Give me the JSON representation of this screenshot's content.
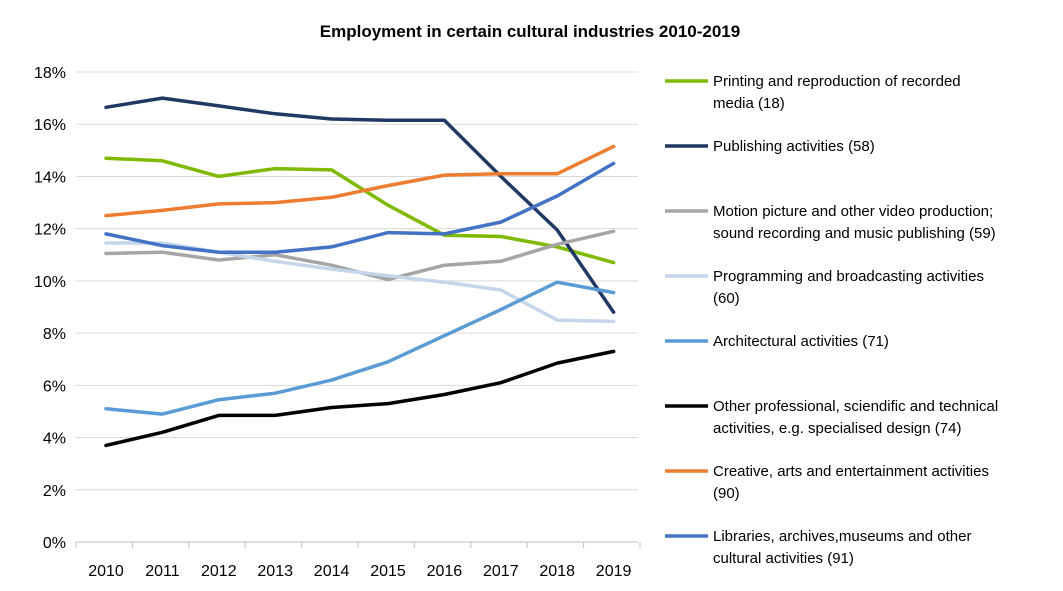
{
  "chart_data": {
    "type": "line",
    "title": "Employment in certain cultural industries 2010-2019",
    "xlabel": "",
    "ylabel": "",
    "x": [
      "2010",
      "2011",
      "2012",
      "2013",
      "2014",
      "2015",
      "2016",
      "2017",
      "2018",
      "2019"
    ],
    "ylim": [
      0,
      18
    ],
    "yticks": [
      0,
      2,
      4,
      6,
      8,
      10,
      12,
      14,
      16,
      18
    ],
    "ytick_labels": [
      "0%",
      "2%",
      "4%",
      "6%",
      "8%",
      "10%",
      "12%",
      "14%",
      "16%",
      "18%"
    ],
    "grid": "horizontal",
    "legend_position": "right",
    "series": [
      {
        "name": "Printing and reproduction of recorded media (18)",
        "legend_lines": [
          "Printing and reproduction of recorded",
          "media (18)"
        ],
        "color": "#7fba00",
        "values": [
          14.7,
          14.6,
          14.0,
          14.3,
          14.25,
          12.9,
          11.75,
          11.7,
          11.3,
          10.7
        ]
      },
      {
        "name": "Publishing activities (58)",
        "legend_lines": [
          "Publishing activities (58)"
        ],
        "color": "#1f3864",
        "values": [
          16.65,
          17.0,
          16.7,
          16.4,
          16.2,
          16.15,
          16.15,
          14.0,
          11.95,
          8.8
        ]
      },
      {
        "name": "Motion picture and other video production; sound recording and music publishing (59)",
        "legend_lines": [
          "Motion picture and other video production;",
          "sound recording and music publishing (59)"
        ],
        "color": "#a5a5a5",
        "values": [
          11.05,
          11.1,
          10.8,
          11.0,
          10.6,
          10.05,
          10.6,
          10.75,
          11.4,
          11.9
        ]
      },
      {
        "name": "Programming and broadcasting activities (60)",
        "legend_lines": [
          "Programming and broadcasting activities",
          "(60)"
        ],
        "color": "#c5d5ea",
        "values": [
          11.45,
          11.45,
          11.1,
          10.75,
          10.45,
          10.2,
          9.95,
          9.65,
          8.5,
          8.45
        ]
      },
      {
        "name": "Architectural activities (71)",
        "legend_lines": [
          "Architectural activities (71)"
        ],
        "color": "#5b9bd5",
        "values": [
          5.1,
          4.9,
          5.45,
          5.7,
          6.2,
          6.9,
          7.9,
          8.9,
          9.95,
          9.55
        ]
      },
      {
        "name": "Other professional, sciendific and technical activities, e.g. specialised design (74)",
        "legend_lines": [
          "Other professional, sciendific and technical",
          "activities, e.g. specialised design (74)"
        ],
        "color": "#000000",
        "values": [
          3.7,
          4.2,
          4.85,
          4.85,
          5.15,
          5.3,
          5.65,
          6.1,
          6.85,
          7.3
        ]
      },
      {
        "name": "Creative, arts and entertainment activities (90)",
        "legend_lines": [
          "Creative, arts and entertainment activities",
          "(90)"
        ],
        "color": "#ed7d31",
        "values": [
          12.5,
          12.7,
          12.95,
          13.0,
          13.2,
          13.65,
          14.05,
          14.1,
          14.1,
          15.15
        ]
      },
      {
        "name": "Libraries, archives,museums and other cultural activities (91)",
        "legend_lines": [
          "Libraries, archives,museums and other",
          "cultural activities (91)"
        ],
        "color": "#4472c4",
        "values": [
          11.8,
          11.35,
          11.1,
          11.1,
          11.3,
          11.85,
          11.8,
          12.25,
          13.25,
          14.5
        ]
      }
    ]
  }
}
